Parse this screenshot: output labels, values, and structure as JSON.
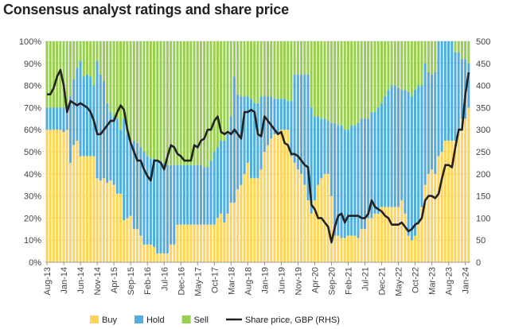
{
  "chart_data": {
    "type": "bar",
    "title": "Consensus analyst ratings and share price",
    "stacked": true,
    "x_tick_labels": [
      "Aug-13",
      "Jan-14",
      "Jun-14",
      "Nov-14",
      "Apr-15",
      "Sep-15",
      "Feb-16",
      "Jul-16",
      "Dec-16",
      "May-17",
      "Oct-17",
      "Mar-18",
      "Aug-18",
      "Jan-19",
      "Jun-19",
      "Nov-19",
      "Apr-20",
      "Sep-20",
      "Feb-21",
      "Jul-21",
      "Dec-21",
      "May-22",
      "Oct-22",
      "Mar-23",
      "Aug-23",
      "Jan-24"
    ],
    "x_start": "Aug-13",
    "x_frequency": "monthly",
    "y_left": {
      "ticks": [
        "0%",
        "10%",
        "20%",
        "30%",
        "40%",
        "50%",
        "60%",
        "70%",
        "80%",
        "90%",
        "100%"
      ],
      "range": [
        0,
        100
      ]
    },
    "y_right": {
      "ticks": [
        "0",
        "50",
        "100",
        "150",
        "200",
        "250",
        "300",
        "350",
        "400",
        "450",
        "500"
      ],
      "range": [
        0,
        500
      ]
    },
    "grid": true,
    "legend_position": "bottom",
    "series": [
      {
        "name": "Buy",
        "color": "#FFD45A",
        "axis": "left",
        "values": [
          60,
          60,
          60,
          60,
          60,
          59,
          60,
          45,
          53,
          55,
          48,
          48,
          48,
          48,
          48,
          38,
          37,
          38,
          36,
          37,
          35,
          31,
          31,
          19,
          20,
          21,
          15,
          15,
          12,
          8,
          8,
          8,
          7,
          4,
          4,
          4,
          4,
          8,
          8,
          17,
          17,
          17,
          17,
          17,
          17,
          17,
          17,
          17,
          17,
          17,
          17,
          20,
          22,
          18,
          22,
          27,
          27,
          33,
          35,
          40,
          45,
          38,
          38,
          38,
          42,
          50,
          53,
          56,
          58,
          58,
          60,
          60,
          60,
          48,
          45,
          42,
          40,
          35,
          28,
          22,
          28,
          35,
          38,
          40,
          40,
          30,
          12,
          12,
          11,
          11,
          12,
          12,
          12,
          11,
          15,
          15,
          20,
          20,
          22,
          22,
          25,
          25,
          25,
          25,
          25,
          25,
          28,
          22,
          12,
          10,
          12,
          17,
          25,
          35,
          40,
          42,
          40,
          48,
          50,
          55,
          55,
          55,
          55,
          60,
          65,
          65,
          70
        ]
      },
      {
        "name": "Hold",
        "color": "#4FAEDE",
        "axis": "left",
        "values": [
          10,
          10,
          10,
          10,
          10,
          11,
          10,
          30,
          30,
          33,
          43,
          36,
          37,
          36,
          32,
          53,
          48,
          44,
          36,
          31,
          31,
          34,
          29,
          46,
          38,
          34,
          40,
          39,
          40,
          42,
          40,
          39,
          40,
          42,
          42,
          41,
          40,
          36,
          36,
          27,
          27,
          27,
          27,
          27,
          27,
          27,
          27,
          26,
          26,
          29,
          33,
          32,
          33,
          37,
          36,
          39,
          57,
          43,
          40,
          35,
          30,
          36,
          34,
          34,
          33,
          25,
          22,
          19,
          16,
          16,
          14,
          14,
          13,
          25,
          40,
          43,
          45,
          50,
          57,
          48,
          38,
          31,
          27,
          25,
          24,
          33,
          51,
          50,
          51,
          49,
          48,
          50,
          50,
          52,
          50,
          50,
          45,
          48,
          46,
          48,
          47,
          50,
          53,
          55,
          55,
          54,
          50,
          56,
          65,
          65,
          66,
          63,
          55,
          55,
          46,
          43,
          46,
          52,
          50,
          45,
          45,
          45,
          40,
          35,
          27,
          27,
          20
        ]
      },
      {
        "name": "Sell",
        "color": "#98CF4E",
        "axis": "left",
        "values": [
          30,
          30,
          30,
          30,
          30,
          30,
          30,
          25,
          17,
          12,
          9,
          16,
          15,
          16,
          20,
          9,
          15,
          18,
          28,
          32,
          34,
          35,
          40,
          35,
          42,
          45,
          45,
          46,
          48,
          50,
          52,
          53,
          53,
          54,
          54,
          55,
          56,
          56,
          56,
          56,
          56,
          56,
          56,
          56,
          56,
          56,
          56,
          57,
          57,
          54,
          50,
          48,
          45,
          45,
          42,
          34,
          16,
          24,
          25,
          25,
          25,
          26,
          28,
          28,
          25,
          25,
          25,
          25,
          26,
          26,
          26,
          26,
          27,
          27,
          15,
          15,
          15,
          15,
          15,
          30,
          34,
          34,
          35,
          35,
          36,
          37,
          37,
          38,
          38,
          40,
          40,
          38,
          38,
          37,
          35,
          35,
          35,
          32,
          32,
          30,
          28,
          25,
          22,
          20,
          20,
          21,
          22,
          22,
          23,
          25,
          22,
          20,
          20,
          10,
          14,
          15,
          14,
          0,
          0,
          0,
          0,
          0,
          5,
          5,
          8,
          8,
          10
        ]
      },
      {
        "name": "Share price, GBP (RHS)",
        "type": "line",
        "color": "#222222",
        "axis": "right",
        "values": [
          380,
          380,
          395,
          420,
          435,
          400,
          340,
          365,
          360,
          355,
          360,
          355,
          350,
          340,
          320,
          290,
          290,
          300,
          310,
          320,
          320,
          340,
          355,
          345,
          300,
          270,
          250,
          230,
          230,
          210,
          195,
          185,
          230,
          230,
          225,
          210,
          240,
          265,
          260,
          245,
          240,
          230,
          230,
          230,
          265,
          260,
          275,
          280,
          300,
          300,
          320,
          330,
          295,
          290,
          295,
          290,
          300,
          290,
          280,
          340,
          340,
          345,
          340,
          290,
          285,
          330,
          320,
          310,
          300,
          290,
          295,
          270,
          265,
          245,
          245,
          240,
          230,
          220,
          215,
          130,
          120,
          100,
          100,
          90,
          80,
          45,
          80,
          105,
          110,
          90,
          105,
          105,
          105,
          105,
          100,
          100,
          110,
          140,
          125,
          120,
          115,
          105,
          100,
          85,
          85,
          85,
          90,
          80,
          70,
          75,
          85,
          90,
          100,
          140,
          150,
          150,
          145,
          155,
          190,
          220,
          220,
          215,
          260,
          300,
          300,
          380,
          430
        ]
      }
    ]
  }
}
